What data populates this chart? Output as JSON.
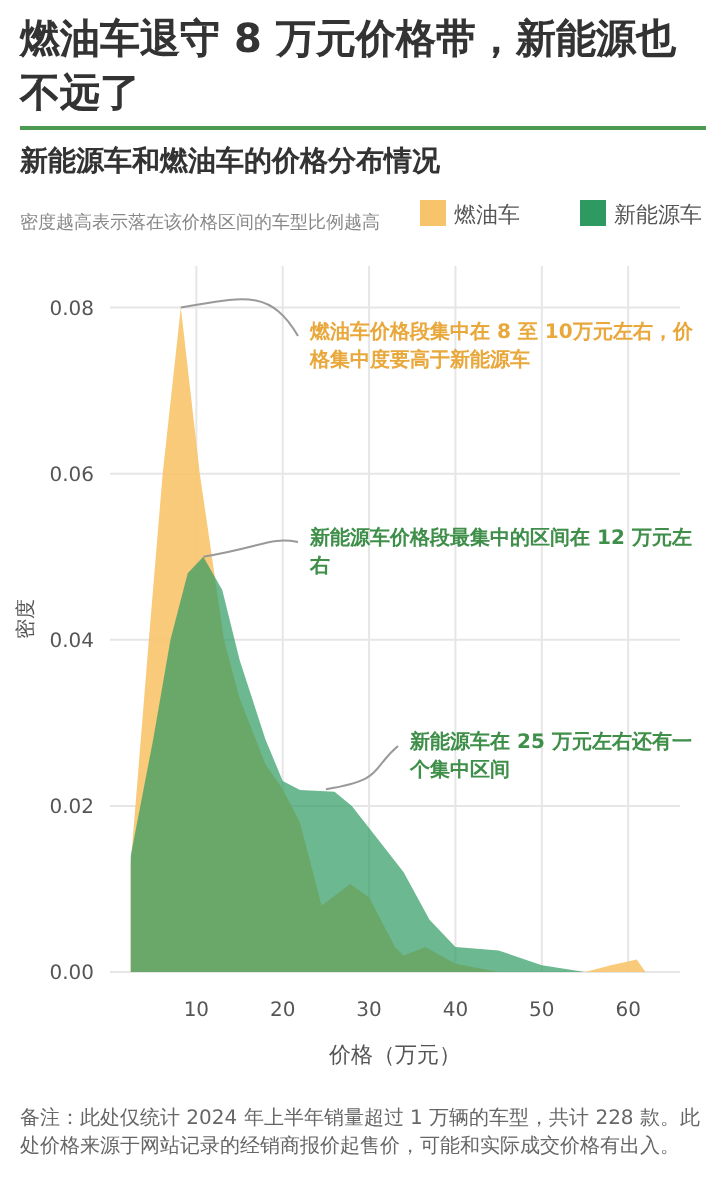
{
  "chart_data": {
    "type": "area",
    "title": "燃油车退守 8 万元价格带，新能源也不远了",
    "subtitle": "新能源车和燃油车的价格分布情况",
    "xlabel": "价格（万元）",
    "ylabel": "密度",
    "legend": "top right",
    "annotations": [
      "密度越高表示落在该价格区间的车型比例越高",
      {
        "text": "燃油车价格段集中在 8 至 10万元左右，价格集中度要高于新能源车",
        "x": 8.2,
        "y": 0.08
      },
      {
        "text": "新能源车价格段最集中的区间在 12 万元左右",
        "x": 10.8,
        "y": 0.05
      },
      {
        "text": "新能源车在 25 万元左右还有一个集中区间",
        "x": 25,
        "y": 0.022
      },
      "备注：此处仅统计 2024 年上半年销量超过 1 万辆的车型，共计 228 款。此处价格来源于网站记录的经销商报价起售价，可能和实际成交价格有出入。"
    ],
    "xlim": [
      0,
      66
    ],
    "ylim": [
      0,
      0.085
    ],
    "xticks": [
      10,
      20,
      30,
      40,
      50,
      60
    ],
    "yticks": [
      {
        "value": 0,
        "label": "0.00"
      },
      {
        "value": 0.02,
        "label": "0.02"
      },
      {
        "value": 0.04,
        "label": "0.04"
      },
      {
        "value": 0.06,
        "label": "0.06"
      },
      {
        "value": 0.08,
        "label": "0.08"
      }
    ],
    "grid": true,
    "series": [
      {
        "name": "燃油车",
        "color": "#f7c46c",
        "x": [
          2.4,
          4.5,
          6.1,
          8.2,
          10.4,
          13.2,
          15,
          18,
          20,
          22,
          24.5,
          27.8,
          30,
          33,
          34,
          36.5,
          40,
          45,
          55,
          58,
          61,
          62
        ],
        "values": [
          0.013,
          0.04,
          0.06,
          0.08,
          0.06,
          0.04,
          0.033,
          0.025,
          0.022,
          0.018,
          0.008,
          0.0106,
          0.009,
          0.003,
          0.002,
          0.003,
          0.001,
          0,
          0,
          0.0008,
          0.0015,
          0
        ]
      },
      {
        "name": "新能源车",
        "color": "#2e9a62",
        "x": [
          2.4,
          5,
          7,
          9,
          10.8,
          13,
          15,
          18,
          20,
          22,
          26,
          28,
          31,
          34,
          37,
          40,
          45,
          50,
          55
        ],
        "values": [
          0.014,
          0.028,
          0.04,
          0.048,
          0.05,
          0.046,
          0.0376,
          0.028,
          0.023,
          0.0219,
          0.0217,
          0.02,
          0.016,
          0.012,
          0.0063,
          0.003,
          0.0026,
          0.0008,
          0
        ]
      }
    ]
  }
}
